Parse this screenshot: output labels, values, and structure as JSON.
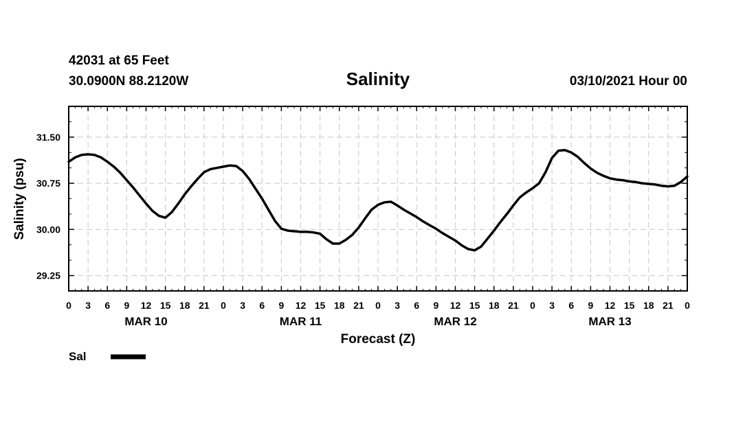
{
  "header": {
    "station": "42031 at 65 Feet",
    "coords": "30.0900N 88.2120W",
    "title": "Salinity",
    "datetime": "03/10/2021 Hour 00"
  },
  "chart_data": {
    "type": "line",
    "title": "Salinity",
    "xlabel": "Forecast (Z)",
    "ylabel": "Salinity (psu)",
    "xlim": [
      0,
      96
    ],
    "ylim": [
      29.0,
      32.0
    ],
    "y_ticks": [
      29.25,
      30.0,
      30.75,
      31.5
    ],
    "y_tick_labels": [
      "29.25",
      "30.00",
      "30.75",
      "31.50"
    ],
    "x_ticks": [
      0,
      3,
      6,
      9,
      12,
      15,
      18,
      21,
      24,
      27,
      30,
      33,
      36,
      39,
      42,
      45,
      48,
      51,
      54,
      57,
      60,
      63,
      66,
      69,
      72,
      75,
      78,
      81,
      84,
      87,
      90,
      93,
      96
    ],
    "x_tick_labels": [
      "0",
      "3",
      "6",
      "9",
      "12",
      "15",
      "18",
      "21",
      "0",
      "3",
      "6",
      "9",
      "12",
      "15",
      "18",
      "21",
      "0",
      "3",
      "6",
      "9",
      "12",
      "15",
      "18",
      "21",
      "0",
      "3",
      "6",
      "9",
      "12",
      "15",
      "18",
      "21",
      "0"
    ],
    "day_labels": [
      {
        "label": "MAR 10",
        "hour": 12
      },
      {
        "label": "MAR 11",
        "hour": 36
      },
      {
        "label": "MAR 12",
        "hour": 60
      },
      {
        "label": "MAR 13",
        "hour": 84
      }
    ],
    "grid": true,
    "legend": "bottom-left",
    "series": [
      {
        "name": "Sal",
        "color": "#000000",
        "x": [
          0,
          1,
          2,
          3,
          4,
          5,
          6,
          7,
          8,
          9,
          10,
          11,
          12,
          13,
          14,
          15,
          16,
          17,
          18,
          19,
          20,
          21,
          22,
          23,
          24,
          25,
          26,
          27,
          28,
          29,
          30,
          31,
          32,
          33,
          34,
          35,
          36,
          37,
          38,
          39,
          40,
          41,
          42,
          43,
          44,
          45,
          46,
          47,
          48,
          49,
          50,
          51,
          52,
          53,
          54,
          55,
          56,
          57,
          58,
          59,
          60,
          61,
          62,
          63,
          64,
          65,
          66,
          67,
          68,
          69,
          70,
          71,
          72,
          73,
          74,
          75,
          76,
          77,
          78,
          79,
          80,
          81,
          82,
          83,
          84,
          85,
          86,
          87,
          88,
          89,
          90,
          91,
          92,
          93,
          94,
          95,
          96
        ],
        "values": [
          31.1,
          31.17,
          31.21,
          31.22,
          31.21,
          31.17,
          31.1,
          31.02,
          30.92,
          30.8,
          30.68,
          30.55,
          30.42,
          30.3,
          30.22,
          30.19,
          30.28,
          30.42,
          30.57,
          30.7,
          30.82,
          30.93,
          30.98,
          31.0,
          31.02,
          31.04,
          31.03,
          30.95,
          30.82,
          30.66,
          30.5,
          30.32,
          30.14,
          30.01,
          29.98,
          29.97,
          29.96,
          29.96,
          29.95,
          29.93,
          29.84,
          29.77,
          29.77,
          29.83,
          29.91,
          30.03,
          30.18,
          30.32,
          30.4,
          30.44,
          30.45,
          30.39,
          30.32,
          30.26,
          30.2,
          30.13,
          30.07,
          30.01,
          29.94,
          29.88,
          29.82,
          29.74,
          29.68,
          29.66,
          29.72,
          29.85,
          29.98,
          30.12,
          30.25,
          30.39,
          30.52,
          30.6,
          30.67,
          30.75,
          30.93,
          31.16,
          31.28,
          31.29,
          31.25,
          31.18,
          31.08,
          30.99,
          30.92,
          30.87,
          30.83,
          30.81,
          30.8,
          30.78,
          30.77,
          30.75,
          30.74,
          30.73,
          30.71,
          30.7,
          30.71,
          30.77,
          30.86
        ]
      }
    ]
  }
}
